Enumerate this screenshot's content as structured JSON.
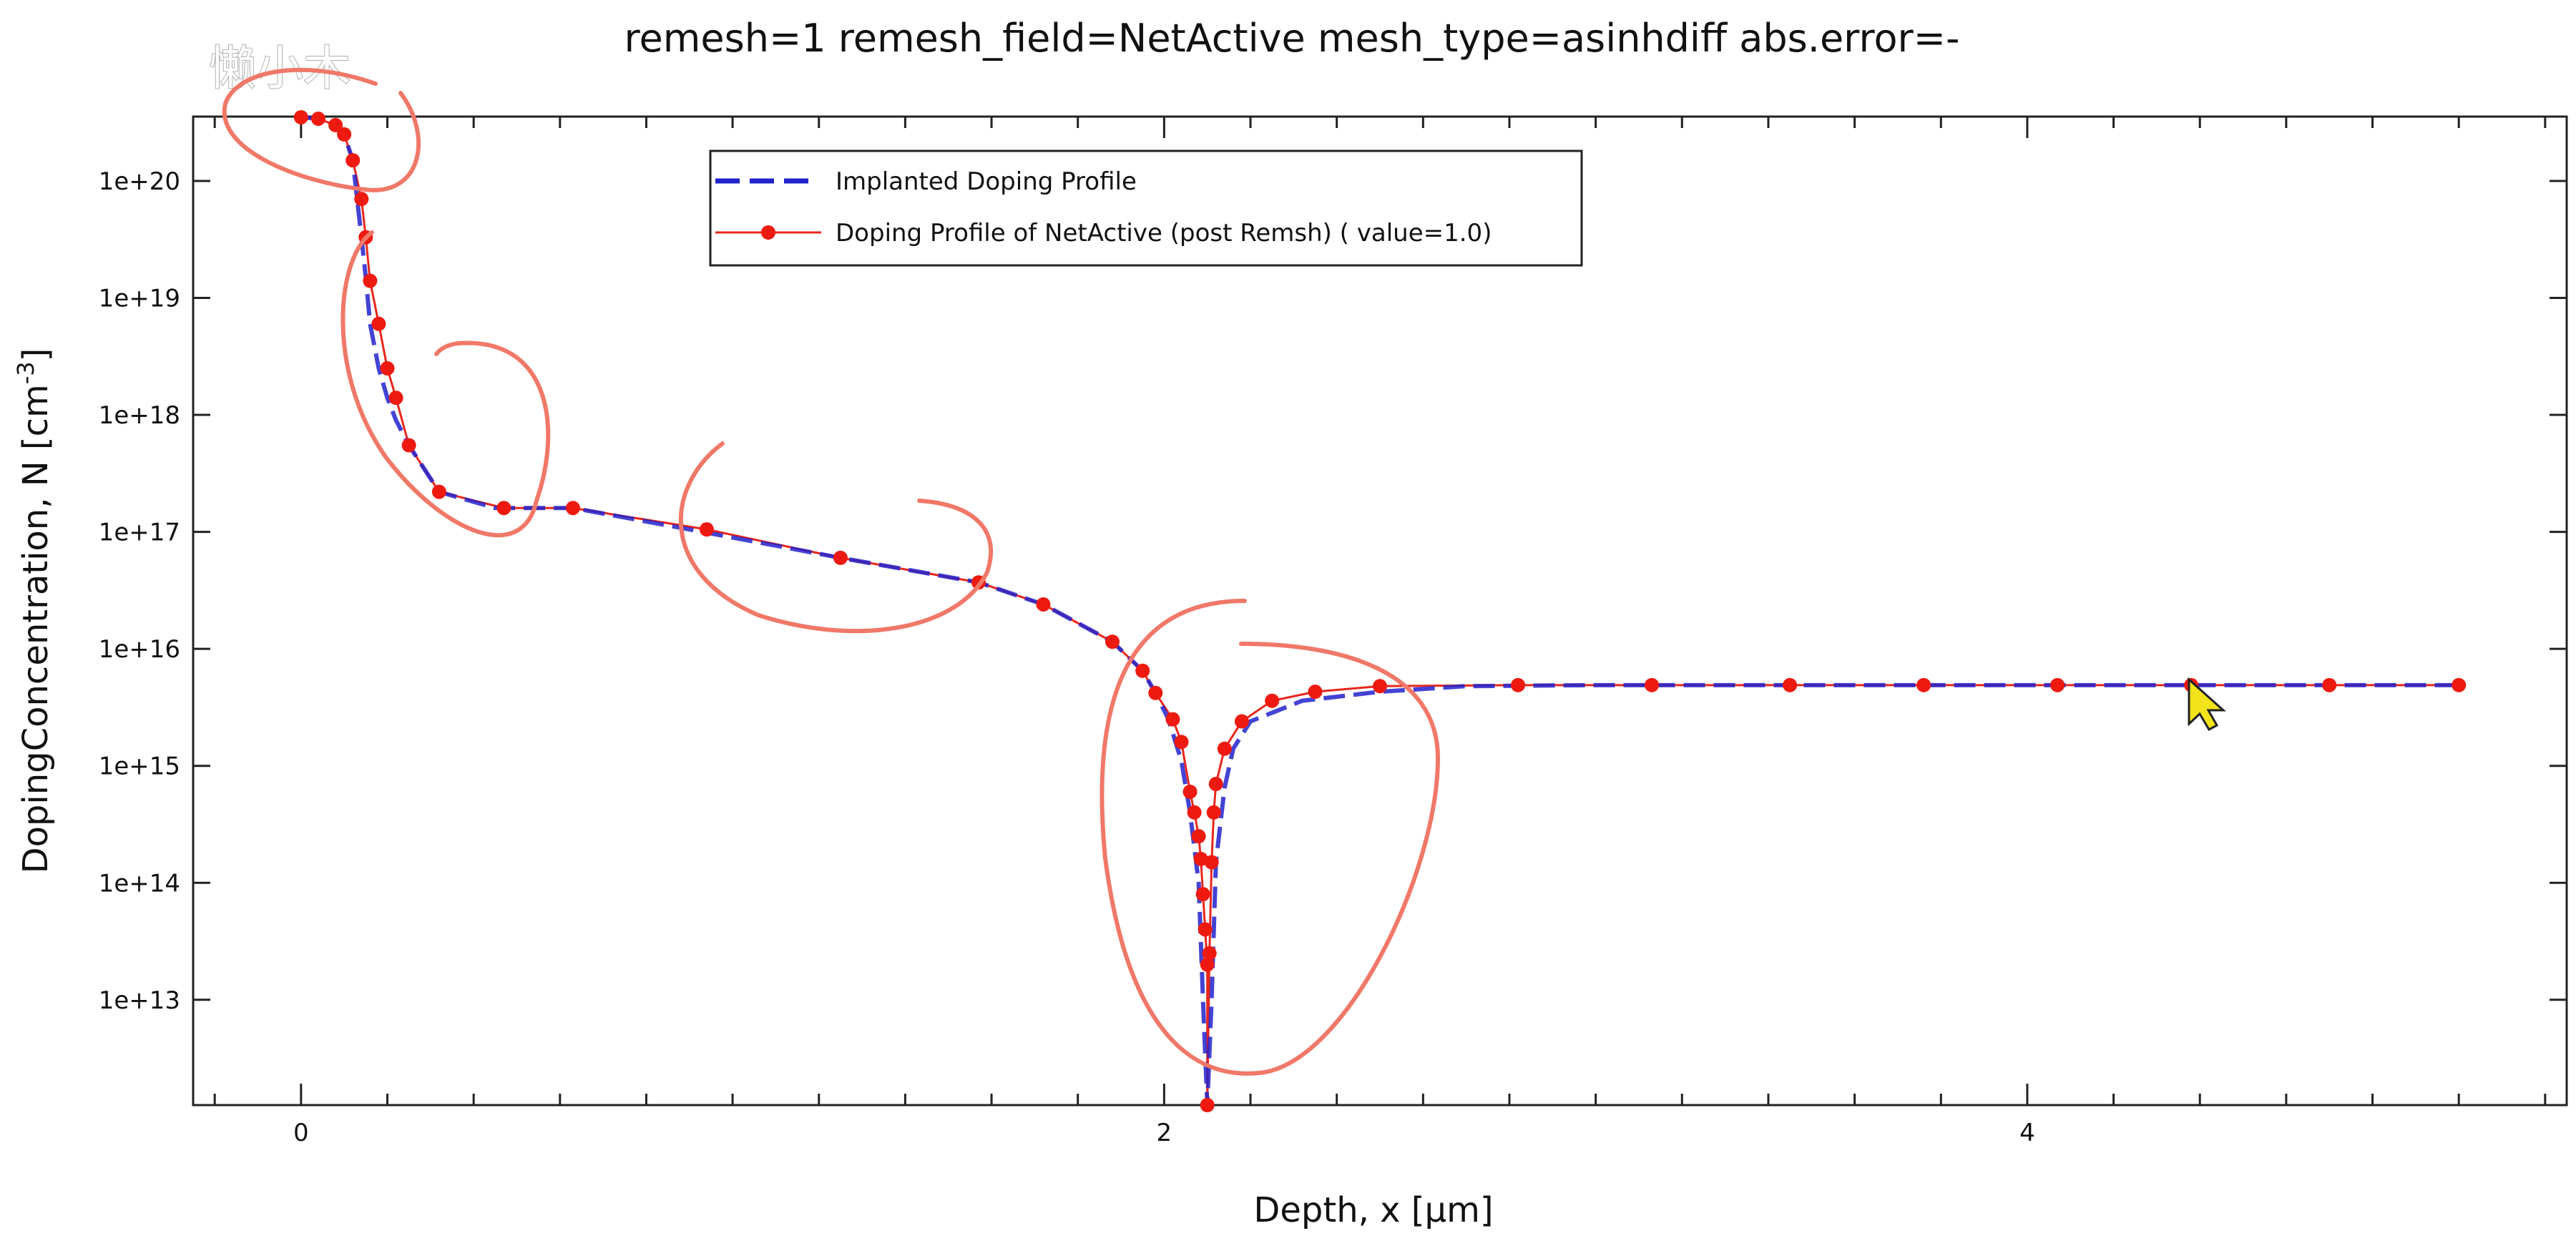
{
  "watermark": "懒小木",
  "chart_data": {
    "type": "line",
    "title": "remesh=1 remesh_field=NetActive mesh_type=asinhdiff abs.error=-",
    "xlabel": "Depth, x [μm]",
    "ylabel_main": "DopingConcentration, N [cm",
    "ylabel_sup": "-3",
    "ylabel_end": "]",
    "xlim": [
      -0.25,
      5.25
    ],
    "ylim_log10": [
      12.1,
      20.55
    ],
    "y_scale": "log",
    "x_ticks": [
      0,
      2,
      4
    ],
    "x_tick_labels": [
      "0",
      "2",
      "4"
    ],
    "y_ticks_log10": [
      13,
      14,
      15,
      16,
      17,
      18,
      19,
      20
    ],
    "y_tick_labels": [
      "1e+13",
      "1e+14",
      "1e+15",
      "1e+16",
      "1e+17",
      "1e+18",
      "1e+19",
      "1e+20"
    ],
    "legend_position": "top-center",
    "legend": [
      {
        "label": "Implanted Doping Profile",
        "color": "#2222cc",
        "style": "dashed"
      },
      {
        "label": "Doping Profile of NetActive (post Remsh) ( value=1.0)",
        "color": "#e8261c",
        "style": "solid-markers"
      }
    ],
    "series": [
      {
        "name": "Implanted Doping Profile",
        "color": "#2222cc",
        "x": [
          0,
          0.04,
          0.08,
          0.1,
          0.12,
          0.13,
          0.14,
          0.15,
          0.16,
          0.18,
          0.2,
          0.22,
          0.25,
          0.32,
          0.45,
          0.63,
          0.9,
          1.25,
          1.57,
          1.72,
          1.88,
          1.95,
          1.98,
          2.01,
          2.04,
          2.06,
          2.08,
          2.09,
          2.1,
          2.11,
          2.12,
          2.14,
          2.16,
          2.2,
          2.32,
          2.5,
          2.7,
          3.0,
          3.5,
          4.0,
          4.5,
          5.0
        ],
        "y": [
          3.5e+20,
          3.4e+20,
          3e+20,
          2.5e+20,
          1.5e+20,
          7e+19,
          3.3e+19,
          1.5e+19,
          6e+18,
          2.5e+18,
          1.4e+18,
          9e+17,
          5.5e+17,
          2.2e+17,
          1.6e+17,
          1.6e+17,
          1.05e+17,
          6e+16,
          3.7e+16,
          2.4e+16,
          1.15e+16,
          6500000000000000.0,
          4200000000000000.0,
          2500000000000000.0,
          1100000000000000.0,
          400000000000000.0,
          100000000000000.0,
          10000000000000.0,
          1000000000000.0,
          10000000000000.0,
          150000000000000.0,
          650000000000000.0,
          1400000000000000.0,
          2400000000000000.0,
          3600000000000000.0,
          4300000000000000.0,
          4800000000000000.0,
          4900000000000000.0,
          4900000000000000.0,
          4900000000000000.0,
          4900000000000000.0,
          4900000000000000.0
        ]
      },
      {
        "name": "Doping Profile of NetActive (post Remsh) ( value=1.0)",
        "color": "#e8261c",
        "x": [
          0,
          0.04,
          0.08,
          0.1,
          0.12,
          0.14,
          0.15,
          0.16,
          0.18,
          0.2,
          0.22,
          0.25,
          0.32,
          0.47,
          0.63,
          0.94,
          1.25,
          1.57,
          1.72,
          1.88,
          1.95,
          1.98,
          2.02,
          2.04,
          2.06,
          2.07,
          2.08,
          2.085,
          2.09,
          2.095,
          2.1,
          2.1,
          2.105,
          2.11,
          2.115,
          2.12,
          2.14,
          2.18,
          2.25,
          2.35,
          2.5,
          2.82,
          3.13,
          3.45,
          3.76,
          4.07,
          4.38,
          4.7,
          5.0
        ],
        "y": [
          3.5e+20,
          3.4e+20,
          3e+20,
          2.5e+20,
          1.5e+20,
          7e+19,
          3.3e+19,
          1.4e+19,
          6e+18,
          2.5e+18,
          1.4e+18,
          5.5e+17,
          2.2e+17,
          1.6e+17,
          1.6e+17,
          1.05e+17,
          6e+16,
          3.7e+16,
          2.4e+16,
          1.15e+16,
          6500000000000000.0,
          4200000000000000.0,
          2500000000000000.0,
          1600000000000000.0,
          600000000000000.0,
          400000000000000.0,
          250000000000000.0,
          160000000000000.0,
          80000000000000.0,
          40000000000000.0,
          20000000000000.0,
          1200000000000.0,
          25000000000000.0,
          150000000000000.0,
          400000000000000.0,
          700000000000000.0,
          1400000000000000.0,
          2400000000000000.0,
          3600000000000000.0,
          4300000000000000.0,
          4800000000000000.0,
          4900000000000000.0,
          4900000000000000.0,
          4900000000000000.0,
          4900000000000000.0,
          4900000000000000.0,
          4900000000000000.0,
          4900000000000000.0,
          4900000000000000.0
        ]
      }
    ]
  }
}
